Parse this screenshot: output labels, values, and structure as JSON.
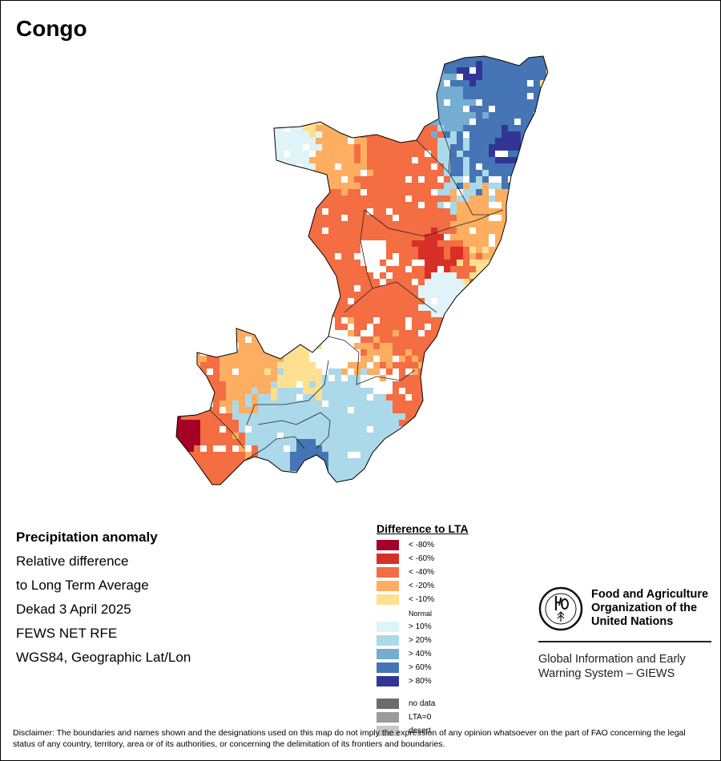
{
  "map_title": "Congo",
  "info": {
    "heading": "Precipitation anomaly",
    "lines": [
      "Relative difference",
      "to Long Term Average",
      "Dekad 3 April 2025",
      "FEWS NET RFE",
      "WGS84, Geographic Lat/Lon"
    ]
  },
  "legend": {
    "title": "Difference to LTA",
    "items": [
      {
        "label": "< -80%",
        "color": "#a50026"
      },
      {
        "label": "< -60%",
        "color": "#d73027"
      },
      {
        "label": "< -40%",
        "color": "#f46d43"
      },
      {
        "label": "< -20%",
        "color": "#fdae61"
      },
      {
        "label": "< -10%",
        "color": "#fee090"
      },
      {
        "label": "Normal",
        "color": "#ffffff"
      },
      {
        "label": "> 10%",
        "color": "#e0f3f8"
      },
      {
        "label": "> 20%",
        "color": "#abd9e9"
      },
      {
        "label": "> 40%",
        "color": "#74add1"
      },
      {
        "label": "> 60%",
        "color": "#4575b4"
      },
      {
        "label": "> 80%",
        "color": "#313695"
      },
      {
        "label": "no data",
        "color": "#6b6b6b"
      },
      {
        "label": "LTA=0",
        "color": "#9b9b9b"
      },
      {
        "label": "desert",
        "color": "#c8c8c8"
      }
    ]
  },
  "org": {
    "name": "Food and Agriculture\nOrganization of the\nUnited Nations",
    "logo_text": "FAO",
    "logo_motto": "FIAT PANIS",
    "system": "Global Information and Early\nWarning System – GIEWS"
  },
  "disclaimer": "Disclaimer: The boundaries and names shown and the designations used on this map do not imply the expression of any opinion whatsoever on the part of FAO concerning the legal status of any country, territory, area or of its authorities, or concerning the delimitation of its frontiers and boundaries."
}
